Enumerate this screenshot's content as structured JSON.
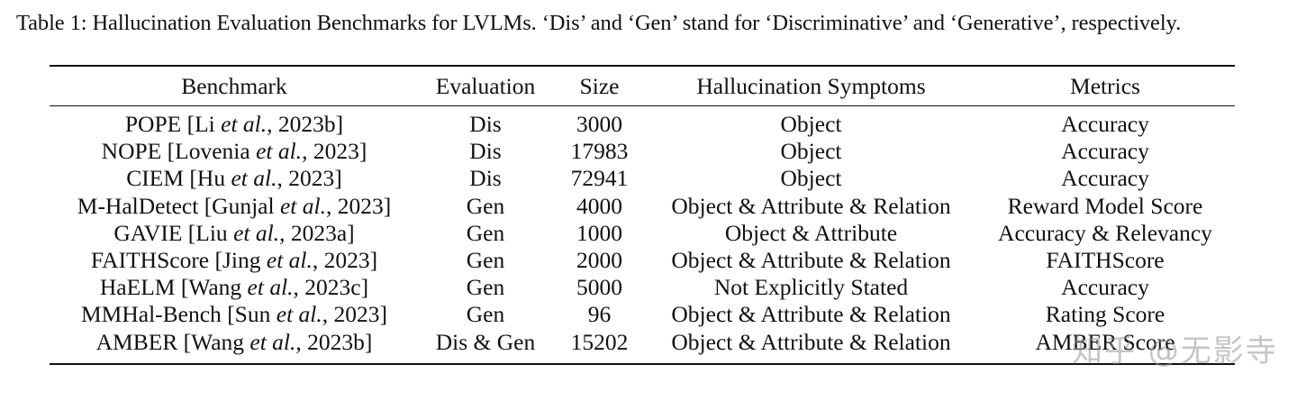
{
  "caption": "Table 1: Hallucination Evaluation Benchmarks for LVLMs. ‘Dis’ and ‘Gen’ stand for ‘Discriminative’ and ‘Generative’, respectively.",
  "table": {
    "headers": [
      "Benchmark",
      "Evaluation",
      "Size",
      "Hallucination Symptoms",
      "Metrics"
    ],
    "rows": [
      {
        "name": "POPE",
        "cite_pre": "[Li ",
        "cite_it": "et al.",
        "cite_post": ", 2023b]",
        "evaluation": "Dis",
        "size": "3000",
        "symptoms": "Object",
        "metrics": "Accuracy"
      },
      {
        "name": "NOPE",
        "cite_pre": "[Lovenia ",
        "cite_it": "et al.",
        "cite_post": ", 2023]",
        "evaluation": "Dis",
        "size": "17983",
        "symptoms": "Object",
        "metrics": "Accuracy"
      },
      {
        "name": "CIEM",
        "cite_pre": "[Hu ",
        "cite_it": "et al.",
        "cite_post": ", 2023]",
        "evaluation": "Dis",
        "size": "72941",
        "symptoms": "Object",
        "metrics": "Accuracy"
      },
      {
        "name": "M-HalDetect",
        "cite_pre": "[Gunjal ",
        "cite_it": "et al.",
        "cite_post": ", 2023]",
        "evaluation": "Gen",
        "size": "4000",
        "symptoms": "Object & Attribute & Relation",
        "metrics": "Reward Model Score"
      },
      {
        "name": "GAVIE",
        "cite_pre": "[Liu ",
        "cite_it": "et al.",
        "cite_post": ", 2023a]",
        "evaluation": "Gen",
        "size": "1000",
        "symptoms": "Object & Attribute",
        "metrics": "Accuracy & Relevancy"
      },
      {
        "name": "FAITHScore",
        "cite_pre": "[Jing ",
        "cite_it": "et al.",
        "cite_post": ", 2023]",
        "evaluation": "Gen",
        "size": "2000",
        "symptoms": "Object & Attribute & Relation",
        "metrics": "FAITHScore"
      },
      {
        "name": "HaELM",
        "cite_pre": "[Wang ",
        "cite_it": "et al.",
        "cite_post": ", 2023c]",
        "evaluation": "Gen",
        "size": "5000",
        "symptoms": "Not Explicitly Stated",
        "metrics": "Accuracy"
      },
      {
        "name": "MMHal-Bench",
        "cite_pre": "[Sun ",
        "cite_it": "et al.",
        "cite_post": ", 2023]",
        "evaluation": "Gen",
        "size": "96",
        "symptoms": "Object & Attribute & Relation",
        "metrics": "Rating Score"
      },
      {
        "name": "AMBER",
        "cite_pre": "[Wang ",
        "cite_it": "et al.",
        "cite_post": ", 2023b]",
        "evaluation": "Dis & Gen",
        "size": "15202",
        "symptoms": "Object & Attribute & Relation",
        "metrics": "AMBER Score"
      }
    ]
  },
  "watermark": "知乎 @无影寺"
}
